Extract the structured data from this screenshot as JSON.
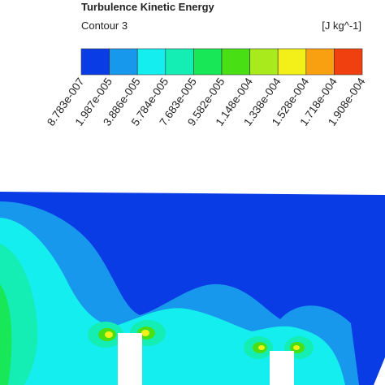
{
  "legend": {
    "title": "Turbulence Kinetic Energy",
    "subtitle": "Contour 3",
    "units": "[J kg^-1]",
    "colors": [
      "#0a3ce6",
      "#1898ec",
      "#14eeee",
      "#14eeb4",
      "#18e858",
      "#48e014",
      "#a8ea1c",
      "#f2f018",
      "#f8a010",
      "#f04010"
    ],
    "tick_labels": [
      "8.783e-007",
      "1.987e-005",
      "3.886e-005",
      "5.784e-005",
      "7.683e-005",
      "9.582e-005",
      "1.148e-004",
      "1.338e-004",
      "1.528e-004",
      "1.718e-004",
      "1.908e-004"
    ]
  }
}
